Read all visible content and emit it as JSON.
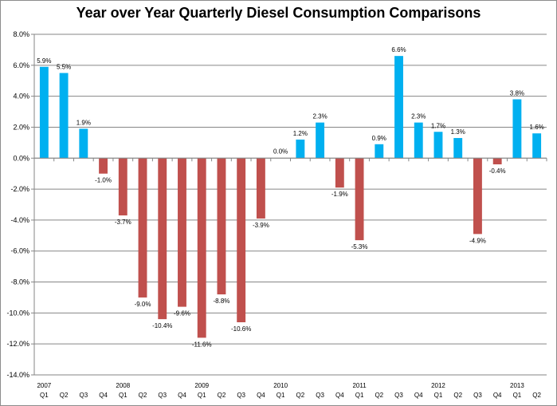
{
  "chart_data": {
    "type": "bar",
    "title": "Year over Year Quarterly Diesel Consumption Comparisons",
    "xlabel": "",
    "ylabel": "",
    "ylim": [
      -14,
      8
    ],
    "yticks": [
      8,
      6,
      4,
      2,
      0,
      -2,
      -4,
      -6,
      -8,
      -10,
      -12,
      -14
    ],
    "ytick_labels": [
      "8.0%",
      "6.0%",
      "4.0%",
      "2.0%",
      "0.0%",
      "-2.0%",
      "-4.0%",
      "-6.0%",
      "-8.0%",
      "-10.0%",
      "-12.0%",
      "-14.0%"
    ],
    "grid": true,
    "legend": "none",
    "positive_color": "#00B0F0",
    "negative_color": "#C0504D",
    "categories": [
      {
        "quarter": "Q1",
        "year": "2007",
        "value": 5.9,
        "label": "5.9%"
      },
      {
        "quarter": "Q2",
        "year": "",
        "value": 5.5,
        "label": "5.5%"
      },
      {
        "quarter": "Q3",
        "year": "",
        "value": 1.9,
        "label": "1.9%"
      },
      {
        "quarter": "Q4",
        "year": "",
        "value": -1.0,
        "label": "-1.0%"
      },
      {
        "quarter": "Q1",
        "year": "2008",
        "value": -3.7,
        "label": "-3.7%"
      },
      {
        "quarter": "Q2",
        "year": "",
        "value": -9.0,
        "label": "-9.0%"
      },
      {
        "quarter": "Q3",
        "year": "",
        "value": -10.4,
        "label": "-10.4%"
      },
      {
        "quarter": "Q4",
        "year": "",
        "value": -9.6,
        "label": "-9.6%"
      },
      {
        "quarter": "Q1",
        "year": "2009",
        "value": -11.6,
        "label": "-11.6%"
      },
      {
        "quarter": "Q2",
        "year": "",
        "value": -8.8,
        "label": "-8.8%"
      },
      {
        "quarter": "Q3",
        "year": "",
        "value": -10.6,
        "label": "-10.6%"
      },
      {
        "quarter": "Q4",
        "year": "",
        "value": -3.9,
        "label": "-3.9%"
      },
      {
        "quarter": "Q1",
        "year": "2010",
        "value": 0.0,
        "label": "0.0%"
      },
      {
        "quarter": "Q2",
        "year": "",
        "value": 1.2,
        "label": "1.2%"
      },
      {
        "quarter": "Q3",
        "year": "",
        "value": 2.3,
        "label": "2.3%"
      },
      {
        "quarter": "Q4",
        "year": "",
        "value": -1.9,
        "label": "-1.9%"
      },
      {
        "quarter": "Q1",
        "year": "2011",
        "value": -5.3,
        "label": "-5.3%"
      },
      {
        "quarter": "Q2",
        "year": "",
        "value": 0.9,
        "label": "0.9%"
      },
      {
        "quarter": "Q3",
        "year": "",
        "value": 6.6,
        "label": "6.6%"
      },
      {
        "quarter": "Q4",
        "year": "",
        "value": 2.3,
        "label": "2.3%"
      },
      {
        "quarter": "Q1",
        "year": "2012",
        "value": 1.7,
        "label": "1.7%"
      },
      {
        "quarter": "Q2",
        "year": "",
        "value": 1.3,
        "label": "1.3%"
      },
      {
        "quarter": "Q3",
        "year": "",
        "value": -4.9,
        "label": "-4.9%"
      },
      {
        "quarter": "Q4",
        "year": "",
        "value": -0.4,
        "label": "-0.4%"
      },
      {
        "quarter": "Q1",
        "year": "2013",
        "value": 3.8,
        "label": "3.8%"
      },
      {
        "quarter": "Q2",
        "year": "",
        "value": 1.6,
        "label": "1.6%"
      }
    ]
  }
}
